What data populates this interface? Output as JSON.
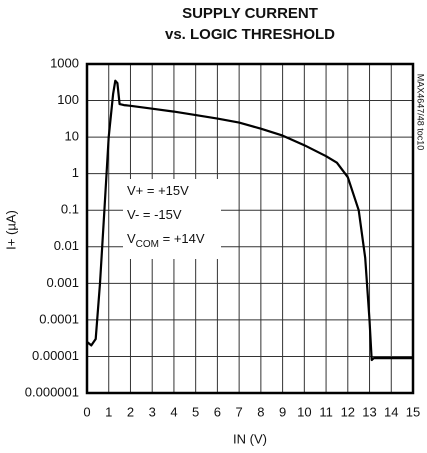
{
  "chart_data": {
    "type": "line",
    "title": [
      "SUPPLY CURRENT",
      "vs. LOGIC THRESHOLD"
    ],
    "xlabel": "IN (V)",
    "ylabel": "I+ (µA)",
    "side_note": "MAX4647/48 toc10",
    "annotations": [
      {
        "text": "V+ = +15V"
      },
      {
        "text": "V- = -15V"
      },
      {
        "text": "V",
        "sub": "COM",
        "after": " = +14V"
      }
    ],
    "x": [
      0,
      0.2,
      0.4,
      0.6,
      0.8,
      1.0,
      1.2,
      1.3,
      1.4,
      1.5,
      1.7,
      2,
      3,
      4,
      5,
      6,
      7,
      8,
      9,
      10,
      11,
      11.5,
      12,
      12.5,
      12.8,
      13,
      13.1,
      13.2,
      14,
      15
    ],
    "series": [
      {
        "name": "I+",
        "color": "#000000",
        "values": [
          2.5e-05,
          2e-05,
          3e-05,
          0.001,
          0.1,
          10,
          150,
          350,
          300,
          80,
          75,
          72,
          60,
          50,
          40,
          32,
          25,
          17,
          11,
          6,
          3,
          2,
          0.8,
          0.1,
          0.005,
          0.0001,
          8e-06,
          9e-06,
          9e-06,
          9e-06
        ]
      }
    ],
    "xlim": [
      0,
      15
    ],
    "xticks": [
      0,
      1,
      2,
      3,
      4,
      5,
      6,
      7,
      8,
      9,
      10,
      11,
      12,
      13,
      14,
      15
    ],
    "ylim": [
      1e-06,
      1000
    ],
    "yticks": [
      1e-06,
      1e-05,
      0.0001,
      0.001,
      0.01,
      0.1,
      1,
      10,
      100,
      1000
    ],
    "ylog": true,
    "grid": true
  }
}
